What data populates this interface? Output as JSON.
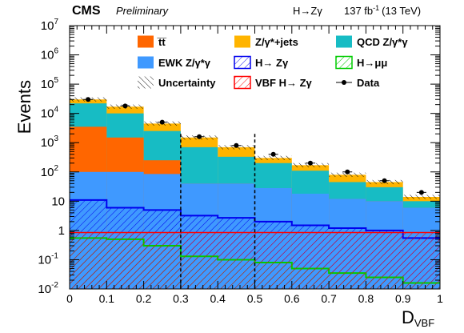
{
  "header": {
    "experiment": "CMS",
    "status": "Preliminary",
    "process": "H→Zγ",
    "lumi_value": "137 fb",
    "lumi_exp": "-1",
    "energy": "(13 TeV)"
  },
  "colors": {
    "ttbar": "#ff6600",
    "zjets": "#ffb400",
    "qcd": "#17bcc4",
    "ewk": "#3f99ff",
    "signal": "#0000ee",
    "vbf": "#ff0000",
    "hmumu": "#00cc00",
    "uncertainty": "#000000",
    "data": "#000000"
  },
  "legend": [
    {
      "key": "ttbar",
      "label": "t̅t̅",
      "style": "fill"
    },
    {
      "key": "zjets",
      "label": "Z/γ*+jets",
      "style": "fill"
    },
    {
      "key": "qcd",
      "label": "QCD Z/γ*γ",
      "style": "fill"
    },
    {
      "key": "ewk",
      "label": "EWK Z/γ*γ",
      "style": "fill"
    },
    {
      "key": "signal",
      "label": "H→ Zγ",
      "style": "hatch"
    },
    {
      "key": "hmumu",
      "label": "H→μμ",
      "style": "hatch"
    },
    {
      "key": "uncertainty",
      "label": "Uncertainty",
      "style": "hatchback"
    },
    {
      "key": "vbf",
      "label": "VBF H→ Zγ",
      "style": "hatch"
    },
    {
      "key": "data",
      "label": "Data",
      "style": "marker"
    }
  ],
  "chart_data": {
    "type": "bar",
    "xlabel": "D",
    "xlabel_sub": "VBF",
    "ylabel": "Events",
    "ylog": true,
    "xlim": [
      0,
      1
    ],
    "ylim": [
      0.01,
      10000000
    ],
    "x_ticks": [
      "0",
      "0.1",
      "0.2",
      "0.3",
      "0.4",
      "0.5",
      "0.6",
      "0.7",
      "0.8",
      "0.9",
      "1"
    ],
    "y_ticks": [
      {
        "base": "10",
        "exp": "-2"
      },
      {
        "base": "10",
        "exp": "-1"
      },
      {
        "base": "1",
        "exp": ""
      },
      {
        "base": "10",
        "exp": ""
      },
      {
        "base": "10",
        "exp": "2"
      },
      {
        "base": "10",
        "exp": "3"
      },
      {
        "base": "10",
        "exp": "4"
      },
      {
        "base": "10",
        "exp": "5"
      },
      {
        "base": "10",
        "exp": "6"
      },
      {
        "base": "10",
        "exp": "7"
      }
    ],
    "bin_edges": [
      0,
      0.1,
      0.2,
      0.3,
      0.4,
      0.5,
      0.6,
      0.7,
      0.8,
      0.9,
      1.0
    ],
    "stack_totals": {
      "ewk": [
        100,
        100,
        85,
        40,
        40,
        28,
        18,
        12,
        10,
        6
      ],
      "ttbar": [
        3500,
        1500,
        250,
        40,
        40,
        28,
        18,
        12,
        10,
        6
      ],
      "qcd": [
        22000,
        10000,
        2500,
        700,
        330,
        200,
        110,
        45,
        30,
        10
      ],
      "zjets": [
        30000,
        17000,
        4500,
        1500,
        700,
        300,
        170,
        80,
        45,
        14
      ]
    },
    "signal_hzg": [
      11,
      6,
      5,
      3.2,
      2.7,
      2.0,
      1.5,
      1.2,
      1.0,
      0.55
    ],
    "vbf_hzg": [
      0.85,
      0.85,
      0.85,
      0.85,
      0.85,
      0.85,
      0.85,
      0.85,
      0.85,
      0.85
    ],
    "hmumu": [
      0.55,
      0.5,
      0.3,
      0.13,
      0.1,
      0.08,
      0.05,
      0.035,
      0.025,
      0.016
    ],
    "data": {
      "x": [
        0.05,
        0.15,
        0.25,
        0.35,
        0.45,
        0.55,
        0.65,
        0.75,
        0.85,
        0.95
      ],
      "y": [
        30000,
        18000,
        5000,
        1600,
        800,
        400,
        200,
        100,
        50,
        20
      ]
    },
    "dashed_lines_x": [
      0.3,
      0.5
    ]
  }
}
